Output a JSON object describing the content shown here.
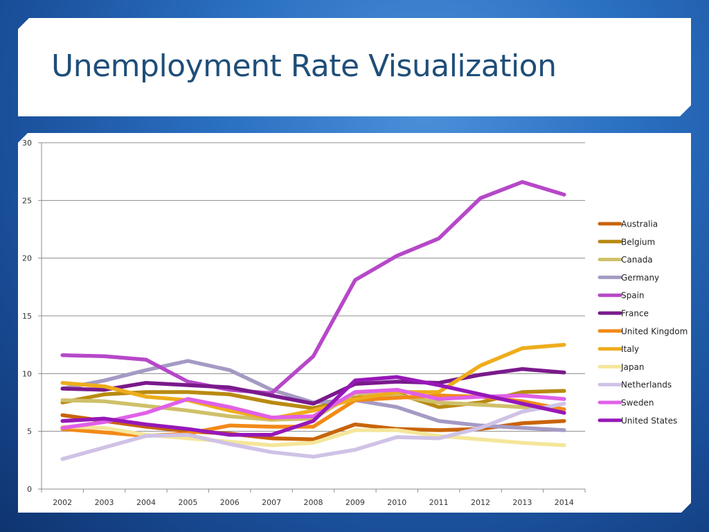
{
  "slide": {
    "title": "Unemployment Rate Visualization"
  },
  "chart_data": {
    "type": "line",
    "x": [
      "2002",
      "2003",
      "2004",
      "2005",
      "2006",
      "2007",
      "2008",
      "2009",
      "2010",
      "2011",
      "2012",
      "2013",
      "2014"
    ],
    "ylim": [
      0,
      30
    ],
    "yticks": [
      0,
      5,
      10,
      15,
      20,
      25,
      30
    ],
    "grid": true,
    "legend_position": "right",
    "series": [
      {
        "name": "Australia",
        "color": "#c8640a",
        "values": [
          6.4,
          5.9,
          5.4,
          5.0,
          4.8,
          4.4,
          4.3,
          5.6,
          5.2,
          5.1,
          5.2,
          5.7,
          5.9
        ]
      },
      {
        "name": "Belgium",
        "color": "#b98a12",
        "values": [
          7.5,
          8.2,
          8.4,
          8.4,
          8.2,
          7.5,
          7.0,
          7.9,
          8.3,
          7.1,
          7.5,
          8.4,
          8.5
        ]
      },
      {
        "name": "Canada",
        "color": "#cfc06a",
        "values": [
          7.7,
          7.6,
          7.2,
          6.8,
          6.3,
          6.0,
          6.1,
          8.3,
          8.1,
          7.5,
          7.3,
          7.1,
          6.9
        ]
      },
      {
        "name": "Germany",
        "color": "#a59ac4",
        "values": [
          8.7,
          9.4,
          10.3,
          11.1,
          10.3,
          8.6,
          7.5,
          7.7,
          7.1,
          5.9,
          5.5,
          5.3,
          5.1
        ]
      },
      {
        "name": "Spain",
        "color": "#b648c8",
        "values": [
          11.6,
          11.5,
          11.2,
          9.3,
          8.6,
          8.3,
          11.5,
          18.1,
          20.2,
          21.7,
          25.2,
          26.6,
          25.5
        ]
      },
      {
        "name": "France",
        "color": "#7a1a8c",
        "values": [
          8.7,
          8.6,
          9.2,
          9.0,
          8.8,
          8.1,
          7.4,
          9.1,
          9.3,
          9.2,
          9.9,
          10.4,
          10.1
        ]
      },
      {
        "name": "United Kingdom",
        "color": "#f28a18",
        "values": [
          5.2,
          4.9,
          4.6,
          4.8,
          5.5,
          5.4,
          5.4,
          7.7,
          7.9,
          8.1,
          8.0,
          7.6,
          6.9
        ]
      },
      {
        "name": "Italy",
        "color": "#eead1c",
        "values": [
          9.2,
          8.9,
          8.0,
          7.7,
          6.8,
          6.1,
          6.8,
          7.8,
          8.4,
          8.4,
          10.7,
          12.2,
          12.5
        ]
      },
      {
        "name": "Japan",
        "color": "#f4e69a",
        "values": [
          5.4,
          5.3,
          4.7,
          4.4,
          4.1,
          3.8,
          4.0,
          5.1,
          5.1,
          4.6,
          4.3,
          4.0,
          3.8
        ]
      },
      {
        "name": "Netherlands",
        "color": "#cfc2e6",
        "values": [
          2.6,
          3.6,
          4.6,
          4.7,
          3.9,
          3.2,
          2.8,
          3.4,
          4.5,
          4.4,
          5.3,
          6.7,
          7.4
        ]
      },
      {
        "name": "Sweden",
        "color": "#e060e8",
        "values": [
          5.3,
          5.8,
          6.6,
          7.8,
          7.1,
          6.2,
          6.3,
          8.4,
          8.6,
          7.8,
          8.0,
          8.1,
          7.8
        ]
      },
      {
        "name": "United States",
        "color": "#9618b8",
        "values": [
          5.9,
          6.1,
          5.6,
          5.2,
          4.7,
          4.7,
          5.9,
          9.4,
          9.7,
          9.0,
          8.2,
          7.4,
          6.6
        ]
      }
    ]
  }
}
